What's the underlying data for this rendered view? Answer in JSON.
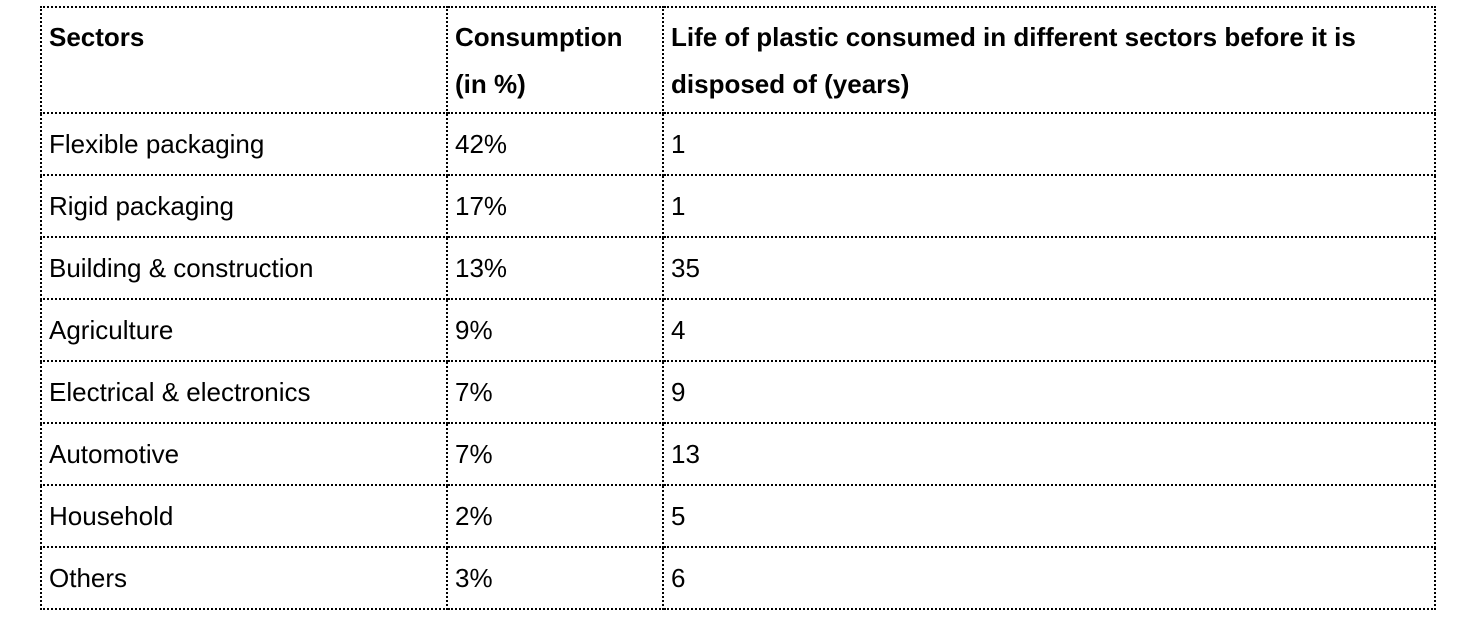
{
  "table": {
    "headers": [
      "Sectors",
      "Consumption (in %)",
      "Life of plastic consumed in different sectors before it is disposed of (years)"
    ],
    "rows": [
      [
        "Flexible packaging",
        "42%",
        "1"
      ],
      [
        "Rigid packaging",
        "17%",
        "1"
      ],
      [
        "Building & construction",
        "13%",
        "35"
      ],
      [
        "Agriculture",
        "9%",
        "4"
      ],
      [
        "Electrical & electronics",
        "7%",
        "9"
      ],
      [
        "Automotive",
        "7%",
        "13"
      ],
      [
        "Household",
        "2%",
        "5"
      ],
      [
        "Others",
        "3%",
        "6"
      ]
    ]
  }
}
